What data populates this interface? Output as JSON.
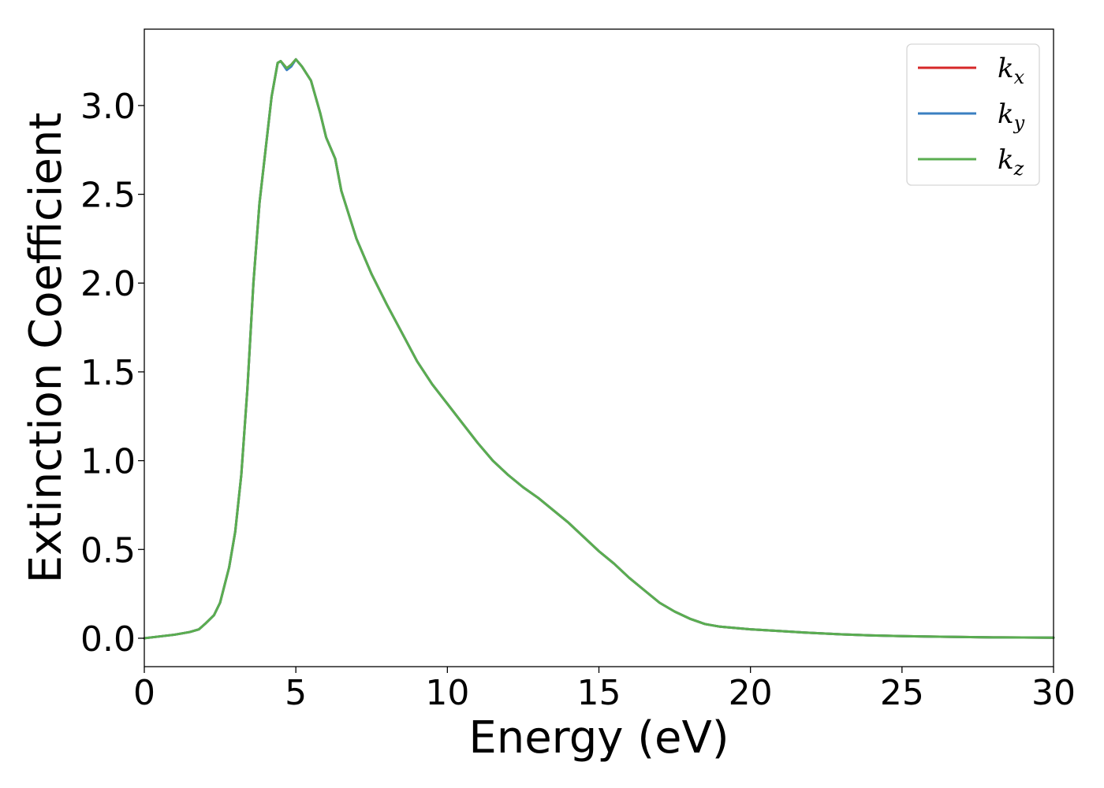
{
  "chart_data": {
    "type": "line",
    "title": "",
    "xlabel": "Energy (eV)",
    "ylabel": "Extinction Coefficient",
    "xlim": [
      0,
      30
    ],
    "ylim": [
      -0.16,
      3.43
    ],
    "xticks": [
      0,
      5,
      10,
      15,
      20,
      25,
      30
    ],
    "yticks": [
      0.0,
      0.5,
      1.0,
      1.5,
      2.0,
      2.5,
      3.0
    ],
    "xtick_labels": [
      "0",
      "5",
      "10",
      "15",
      "20",
      "25",
      "30"
    ],
    "ytick_labels": [
      "0.0",
      "0.5",
      "1.0",
      "1.5",
      "2.0",
      "2.5",
      "3.0"
    ],
    "grid": false,
    "legend_position": "top-right",
    "series": [
      {
        "name": "k_x",
        "label_main": "k",
        "label_sub": "x",
        "color": "#d62728",
        "x": [
          0,
          0.5,
          1.0,
          1.5,
          1.8,
          2.0,
          2.3,
          2.5,
          2.8,
          3.0,
          3.2,
          3.4,
          3.6,
          3.8,
          4.0,
          4.2,
          4.4,
          4.5,
          4.7,
          4.85,
          5.0,
          5.2,
          5.5,
          5.8,
          6.0,
          6.3,
          6.5,
          7.0,
          7.5,
          8.0,
          8.5,
          9.0,
          9.5,
          10.0,
          10.5,
          11.0,
          11.5,
          12.0,
          12.5,
          13.0,
          13.5,
          14.0,
          14.5,
          15.0,
          15.5,
          16.0,
          16.5,
          17.0,
          17.5,
          18.0,
          18.5,
          19.0,
          20.0,
          21.0,
          22.0,
          23.0,
          24.0,
          25.0,
          26.0,
          27.0,
          28.0,
          29.0,
          30.0
        ],
        "y": [
          0.0,
          0.01,
          0.02,
          0.035,
          0.05,
          0.08,
          0.13,
          0.2,
          0.4,
          0.6,
          0.92,
          1.4,
          2.0,
          2.45,
          2.75,
          3.05,
          3.24,
          3.25,
          3.21,
          3.23,
          3.26,
          3.22,
          3.14,
          2.96,
          2.82,
          2.7,
          2.52,
          2.25,
          2.05,
          1.88,
          1.72,
          1.56,
          1.43,
          1.32,
          1.21,
          1.1,
          1.0,
          0.92,
          0.85,
          0.79,
          0.72,
          0.65,
          0.57,
          0.49,
          0.42,
          0.34,
          0.27,
          0.2,
          0.15,
          0.11,
          0.08,
          0.065,
          0.05,
          0.04,
          0.03,
          0.022,
          0.016,
          0.012,
          0.009,
          0.007,
          0.005,
          0.004,
          0.003
        ]
      },
      {
        "name": "k_y",
        "label_main": "k",
        "label_sub": "y",
        "color": "#3a7fc1",
        "x": [
          0,
          0.5,
          1.0,
          1.5,
          1.8,
          2.0,
          2.3,
          2.5,
          2.8,
          3.0,
          3.2,
          3.4,
          3.6,
          3.8,
          4.0,
          4.2,
          4.4,
          4.5,
          4.7,
          4.85,
          5.0,
          5.2,
          5.5,
          5.8,
          6.0,
          6.3,
          6.5,
          7.0,
          7.5,
          8.0,
          8.5,
          9.0,
          9.5,
          10.0,
          10.5,
          11.0,
          11.5,
          12.0,
          12.5,
          13.0,
          13.5,
          14.0,
          14.5,
          15.0,
          15.5,
          16.0,
          16.5,
          17.0,
          17.5,
          18.0,
          18.5,
          19.0,
          20.0,
          21.0,
          22.0,
          23.0,
          24.0,
          25.0,
          26.0,
          27.0,
          28.0,
          29.0,
          30.0
        ],
        "y": [
          0.0,
          0.01,
          0.02,
          0.035,
          0.05,
          0.08,
          0.13,
          0.2,
          0.4,
          0.6,
          0.92,
          1.4,
          2.0,
          2.45,
          2.75,
          3.05,
          3.24,
          3.25,
          3.2,
          3.22,
          3.26,
          3.22,
          3.14,
          2.96,
          2.82,
          2.7,
          2.52,
          2.25,
          2.05,
          1.88,
          1.72,
          1.56,
          1.43,
          1.32,
          1.21,
          1.1,
          1.0,
          0.92,
          0.85,
          0.79,
          0.72,
          0.65,
          0.57,
          0.49,
          0.42,
          0.34,
          0.27,
          0.2,
          0.15,
          0.11,
          0.08,
          0.065,
          0.05,
          0.04,
          0.03,
          0.022,
          0.016,
          0.012,
          0.009,
          0.007,
          0.005,
          0.004,
          0.003
        ]
      },
      {
        "name": "k_z",
        "label_main": "k",
        "label_sub": "z",
        "color": "#5aad50",
        "x": [
          0,
          0.5,
          1.0,
          1.5,
          1.8,
          2.0,
          2.3,
          2.5,
          2.8,
          3.0,
          3.2,
          3.4,
          3.6,
          3.8,
          4.0,
          4.2,
          4.4,
          4.5,
          4.7,
          4.85,
          5.0,
          5.2,
          5.5,
          5.8,
          6.0,
          6.3,
          6.5,
          7.0,
          7.5,
          8.0,
          8.5,
          9.0,
          9.5,
          10.0,
          10.5,
          11.0,
          11.5,
          12.0,
          12.5,
          13.0,
          13.5,
          14.0,
          14.5,
          15.0,
          15.5,
          16.0,
          16.5,
          17.0,
          17.5,
          18.0,
          18.5,
          19.0,
          20.0,
          21.0,
          22.0,
          23.0,
          24.0,
          25.0,
          26.0,
          27.0,
          28.0,
          29.0,
          30.0
        ],
        "y": [
          0.0,
          0.01,
          0.02,
          0.035,
          0.05,
          0.08,
          0.13,
          0.2,
          0.4,
          0.6,
          0.92,
          1.4,
          2.0,
          2.45,
          2.75,
          3.05,
          3.24,
          3.25,
          3.21,
          3.23,
          3.26,
          3.22,
          3.14,
          2.96,
          2.82,
          2.7,
          2.52,
          2.25,
          2.05,
          1.88,
          1.72,
          1.56,
          1.43,
          1.32,
          1.21,
          1.1,
          1.0,
          0.92,
          0.85,
          0.79,
          0.72,
          0.65,
          0.57,
          0.49,
          0.42,
          0.34,
          0.27,
          0.2,
          0.15,
          0.11,
          0.08,
          0.065,
          0.05,
          0.04,
          0.03,
          0.022,
          0.016,
          0.012,
          0.009,
          0.007,
          0.005,
          0.004,
          0.003
        ]
      }
    ]
  }
}
